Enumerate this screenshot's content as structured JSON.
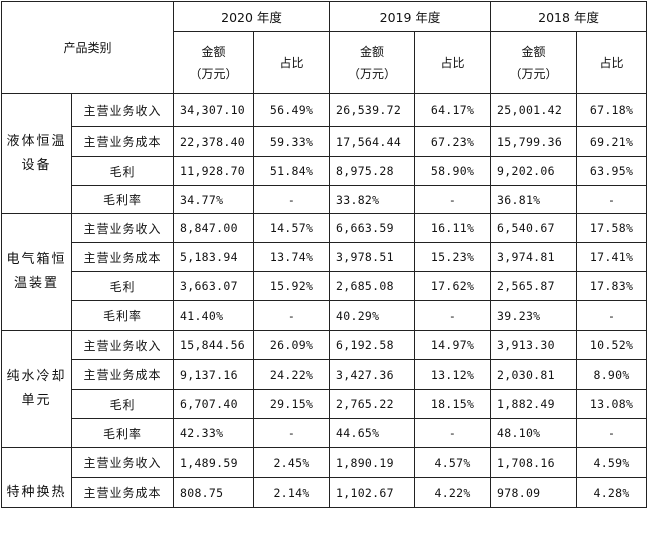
{
  "header": {
    "category": "产品类别",
    "years": [
      "2020 年度",
      "2019 年度",
      "2018 年度"
    ],
    "amount_line1": "金额",
    "amount_line2": "（万元）",
    "ratio": "占比"
  },
  "groups": [
    {
      "name_lines": [
        "液体恒温",
        "设备"
      ],
      "rows": [
        {
          "label": "主营业务收入",
          "cells": [
            "34,307.10",
            "56.49%",
            "26,539.72",
            "64.17%",
            "25,001.42",
            "67.18%"
          ]
        },
        {
          "label": "主营业务成本",
          "cells": [
            "22,378.40",
            "59.33%",
            "17,564.44",
            "67.23%",
            "15,799.36",
            "69.21%"
          ]
        },
        {
          "label": "毛利",
          "cells": [
            "11,928.70",
            "51.84%",
            "8,975.28",
            "58.90%",
            "9,202.06",
            "63.95%"
          ]
        },
        {
          "label": "毛利率",
          "cells": [
            "34.77%",
            "-",
            "33.82%",
            "-",
            "36.81%",
            "-"
          ]
        }
      ]
    },
    {
      "name_lines": [
        "电气箱恒",
        "温装置"
      ],
      "rows": [
        {
          "label": "主营业务收入",
          "cells": [
            "8,847.00",
            "14.57%",
            "6,663.59",
            "16.11%",
            "6,540.67",
            "17.58%"
          ]
        },
        {
          "label": "主营业务成本",
          "cells": [
            "5,183.94",
            "13.74%",
            "3,978.51",
            "15.23%",
            "3,974.81",
            "17.41%"
          ]
        },
        {
          "label": "毛利",
          "cells": [
            "3,663.07",
            "15.92%",
            "2,685.08",
            "17.62%",
            "2,565.87",
            "17.83%"
          ]
        },
        {
          "label": "毛利率",
          "cells": [
            "41.40%",
            "-",
            "40.29%",
            "-",
            "39.23%",
            "-"
          ]
        }
      ]
    },
    {
      "name_lines": [
        "纯水冷却",
        "单元"
      ],
      "rows": [
        {
          "label": "主营业务收入",
          "cells": [
            "15,844.56",
            "26.09%",
            "6,192.58",
            "14.97%",
            "3,913.30",
            "10.52%"
          ]
        },
        {
          "label": "主营业务成本",
          "cells": [
            "9,137.16",
            "24.22%",
            "3,427.36",
            "13.12%",
            "2,030.81",
            "8.90%"
          ]
        },
        {
          "label": "毛利",
          "cells": [
            "6,707.40",
            "29.15%",
            "2,765.22",
            "18.15%",
            "1,882.49",
            "13.08%"
          ]
        },
        {
          "label": "毛利率",
          "cells": [
            "42.33%",
            "-",
            "44.65%",
            "-",
            "48.10%",
            "-"
          ]
        }
      ]
    },
    {
      "name_lines": [
        "特种换热"
      ],
      "rows": [
        {
          "label": "主营业务收入",
          "cells": [
            "1,489.59",
            "2.45%",
            "1,890.19",
            "4.57%",
            "1,708.16",
            "4.59%"
          ]
        },
        {
          "label": "主营业务成本",
          "cells": [
            "808.75",
            "2.14%",
            "1,102.67",
            "4.22%",
            "978.09",
            "4.28%"
          ]
        }
      ]
    }
  ]
}
